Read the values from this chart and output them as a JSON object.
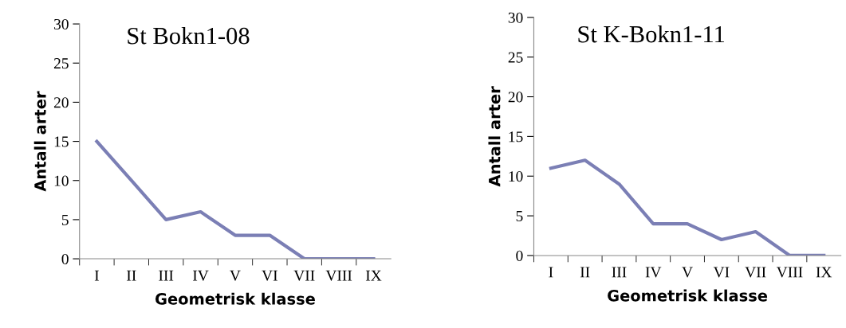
{
  "chart_data": [
    {
      "type": "line",
      "title": "St Bokn1-08",
      "xlabel": "Geometrisk klasse",
      "ylabel": "Antall arter",
      "categories": [
        "I",
        "II",
        "III",
        "IV",
        "V",
        "VI",
        "VII",
        "VIII",
        "IX"
      ],
      "series": [
        {
          "color": "#7b7fb5",
          "values": [
            15,
            10,
            5,
            6,
            3,
            3,
            0,
            0,
            0
          ]
        }
      ],
      "ylim": [
        0,
        30
      ],
      "yticks": [
        0,
        5,
        10,
        15,
        20,
        25,
        30
      ],
      "grid": false,
      "legend": false,
      "marker": "none",
      "line_style": "solid"
    },
    {
      "type": "line",
      "title": "St K-Bokn1-11",
      "xlabel": "Geometrisk klasse",
      "ylabel": "Antall arter",
      "categories": [
        "I",
        "II",
        "III",
        "IV",
        "V",
        "VI",
        "VII",
        "VIII",
        "IX"
      ],
      "series": [
        {
          "color": "#7b7fb5",
          "values": [
            11,
            12,
            9,
            4,
            4,
            2,
            3,
            0,
            0
          ]
        }
      ],
      "ylim": [
        0,
        30
      ],
      "yticks": [
        0,
        5,
        10,
        15,
        20,
        25,
        30
      ],
      "grid": false,
      "legend": false,
      "marker": "none",
      "line_style": "solid"
    }
  ]
}
